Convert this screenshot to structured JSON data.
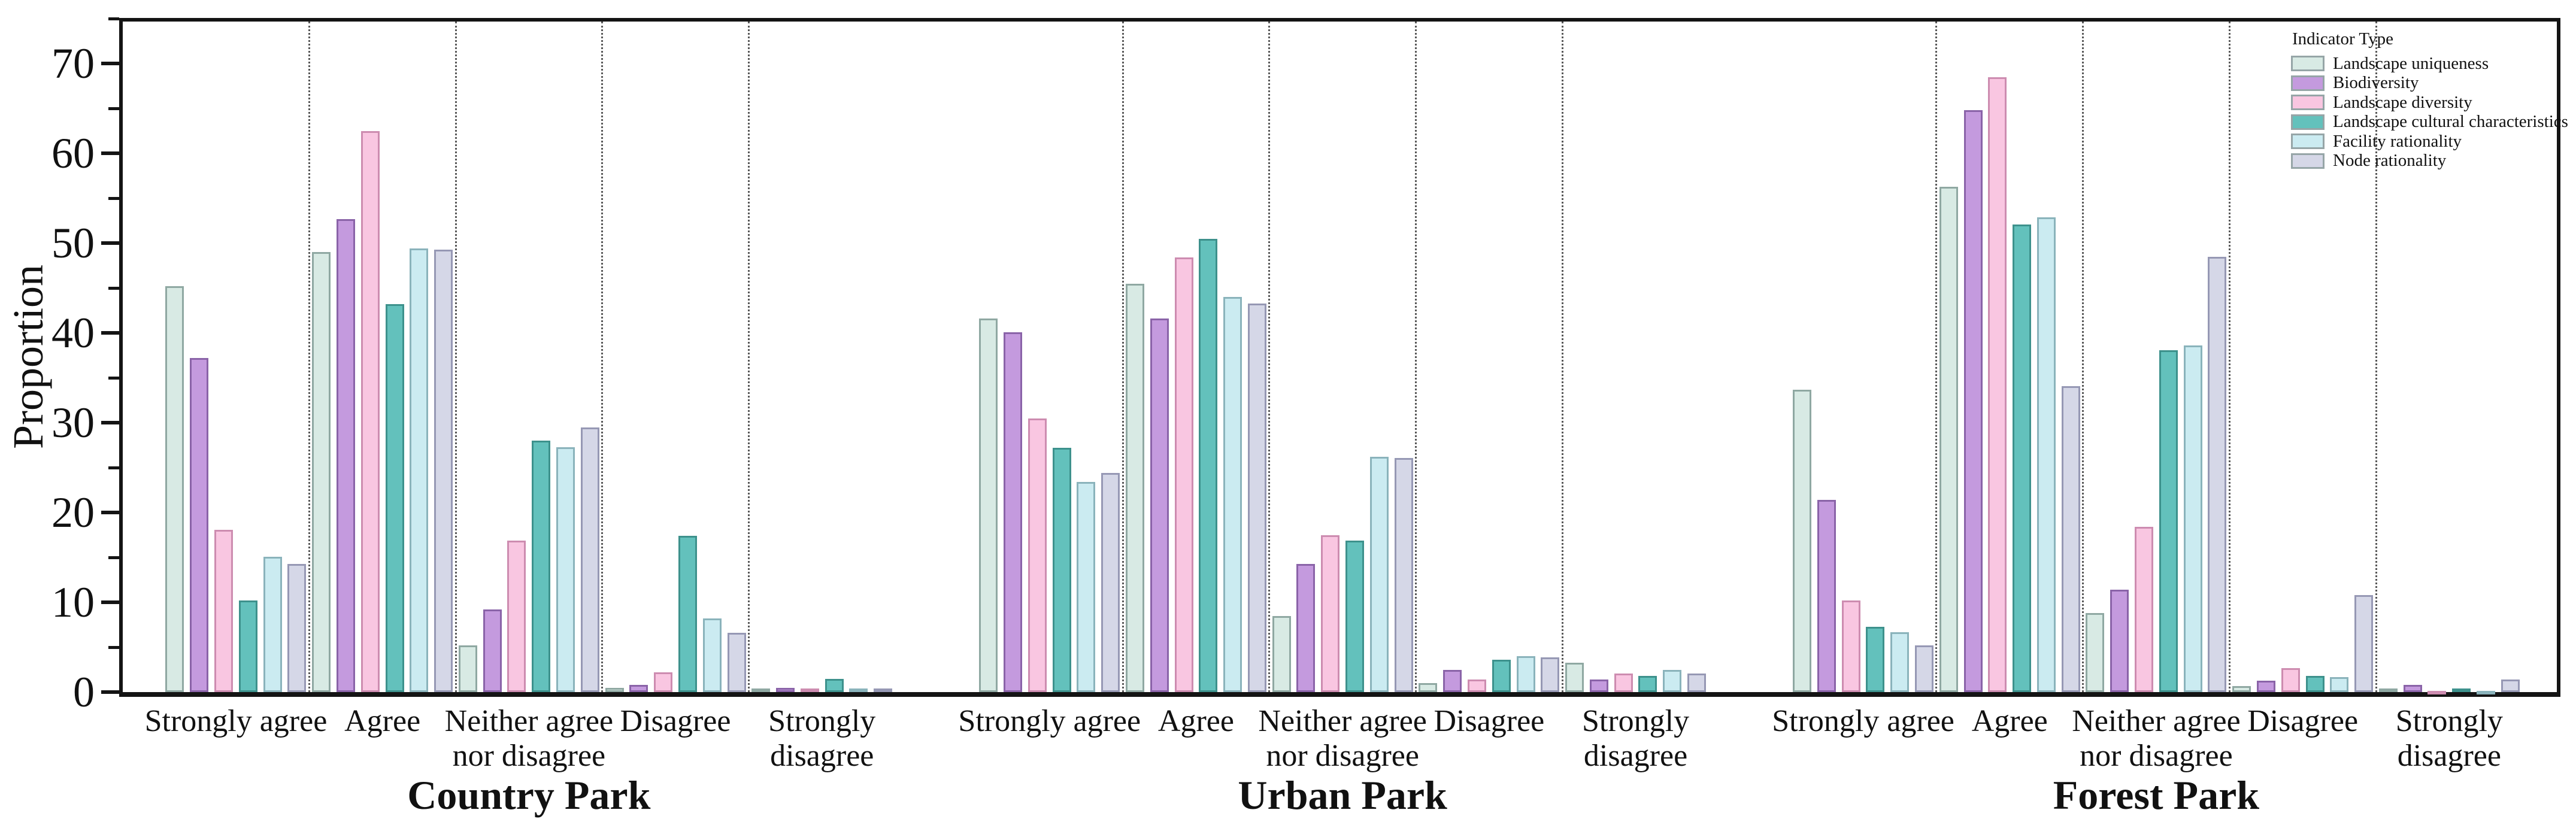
{
  "chart_data": {
    "type": "bar",
    "title": "",
    "ylabel": "Proportion",
    "ylim": [
      0,
      75
    ],
    "yticks": [
      0,
      10,
      20,
      30,
      40,
      50,
      60,
      70
    ],
    "minor_tick_step": 5,
    "grid": "dotted vertical separators between answer categories; none between parks",
    "legend": {
      "title": "Indicator Type",
      "position": "top-right",
      "entries": [
        {
          "label": "Landscape uniqueness",
          "fill": "#d8eae4",
          "border": "#8fa8a2"
        },
        {
          "label": "Biodiversity",
          "fill": "#c49ade",
          "border": "#8a63a8"
        },
        {
          "label": "Landscape diversity",
          "fill": "#f9c6e1",
          "border": "#cd8cb0"
        },
        {
          "label": "Landscape cultural characteristics",
          "fill": "#63c1bc",
          "border": "#3d918c"
        },
        {
          "label": "Facility rationality",
          "fill": "#cbebf1",
          "border": "#8ab3bb"
        },
        {
          "label": "Node rationality",
          "fill": "#d5d7e7",
          "border": "#9698b4"
        }
      ]
    },
    "categories": [
      "Strongly agree",
      "Agree",
      "Neither agree\nnor disagree",
      "Disagree",
      "Strongly\ndisagree"
    ],
    "panels": [
      {
        "label": "Country Park",
        "series": [
          {
            "name": "Landscape uniqueness",
            "values": [
              45.2,
              49.0,
              5.2,
              0.5,
              0.4
            ]
          },
          {
            "name": "Biodiversity",
            "values": [
              37.2,
              52.7,
              9.2,
              0.8,
              0.5
            ]
          },
          {
            "name": "Landscape diversity",
            "values": [
              18.1,
              62.5,
              16.9,
              2.2,
              0.4
            ]
          },
          {
            "name": "Landscape cultural characteristics",
            "values": [
              10.2,
              43.2,
              28.0,
              17.4,
              1.5
            ]
          },
          {
            "name": "Facility rationality",
            "values": [
              15.1,
              49.4,
              27.3,
              8.2,
              0.4
            ]
          },
          {
            "name": "Node rationality",
            "values": [
              14.3,
              49.3,
              29.5,
              6.6,
              0.4
            ]
          }
        ]
      },
      {
        "label": "Urban Park",
        "series": [
          {
            "name": "Landscape uniqueness",
            "values": [
              41.6,
              45.5,
              8.5,
              1.0,
              3.3
            ]
          },
          {
            "name": "Biodiversity",
            "values": [
              40.1,
              41.6,
              14.3,
              2.5,
              1.4
            ]
          },
          {
            "name": "Landscape diversity",
            "values": [
              30.5,
              48.4,
              17.5,
              1.4,
              2.1
            ]
          },
          {
            "name": "Landscape cultural characteristics",
            "values": [
              27.2,
              50.5,
              16.9,
              3.6,
              1.8
            ]
          },
          {
            "name": "Facility rationality",
            "values": [
              23.4,
              44.0,
              26.2,
              4.0,
              2.5
            ]
          },
          {
            "name": "Node rationality",
            "values": [
              24.4,
              43.3,
              26.1,
              3.9,
              2.1
            ]
          }
        ]
      },
      {
        "label": "Forest Park",
        "series": [
          {
            "name": "Landscape uniqueness",
            "values": [
              33.7,
              56.3,
              8.8,
              0.7,
              0.4
            ]
          },
          {
            "name": "Biodiversity",
            "values": [
              21.4,
              64.8,
              11.4,
              1.3,
              0.8
            ]
          },
          {
            "name": "Landscape diversity",
            "values": [
              10.2,
              68.5,
              18.4,
              2.7,
              0.1
            ]
          },
          {
            "name": "Landscape cultural characteristics",
            "values": [
              7.3,
              52.1,
              38.1,
              1.8,
              0.4
            ]
          },
          {
            "name": "Facility rationality",
            "values": [
              6.7,
              52.9,
              38.6,
              1.7,
              0.1
            ]
          },
          {
            "name": "Node rationality",
            "values": [
              5.2,
              34.1,
              48.5,
              10.8,
              1.4
            ]
          }
        ]
      }
    ]
  }
}
